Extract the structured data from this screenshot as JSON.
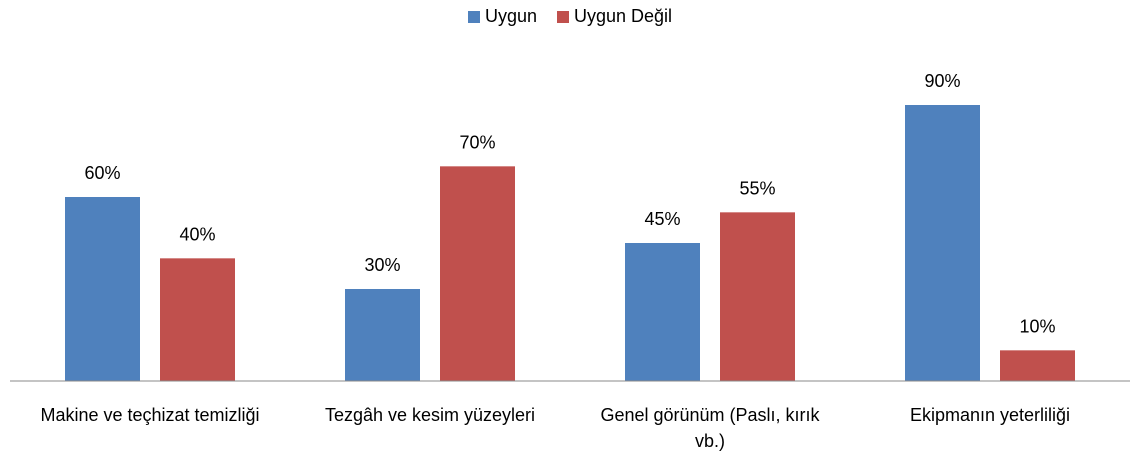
{
  "chart_data": {
    "type": "bar",
    "categories": [
      "Makine ve teçhizat temizliği",
      "Tezgâh ve kesim yüzeyleri",
      "Genel görünüm (Paslı, kırık vb.)",
      "Ekipmanın yeterliliği"
    ],
    "series": [
      {
        "name": "Uygun",
        "color": "#4f81bd",
        "values": [
          60,
          30,
          45,
          90
        ],
        "value_labels": [
          "60%",
          "30%",
          "45%",
          "90%"
        ]
      },
      {
        "name": "Uygun Değil",
        "color": "#c0504d",
        "values": [
          40,
          70,
          55,
          10
        ],
        "value_labels": [
          "40%",
          "70%",
          "55%",
          "10%"
        ]
      }
    ],
    "legend": "top"
  }
}
